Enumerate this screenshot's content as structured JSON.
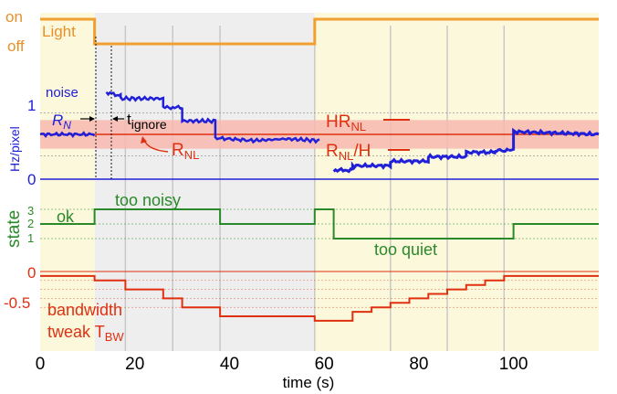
{
  "chart_data": {
    "type": "line",
    "xlabel": "time (s)",
    "xlim": [
      0,
      118
    ],
    "x_ticks": [
      {
        "v": 0,
        "t": "0"
      },
      {
        "v": 20,
        "t": "20"
      },
      {
        "v": 40,
        "t": "40"
      },
      {
        "v": 60,
        "t": "60"
      },
      {
        "v": 80,
        "t": "80"
      },
      {
        "v": 100,
        "t": "100"
      }
    ],
    "gridlines_x": [
      18,
      28,
      38,
      58,
      74,
      86,
      98
    ],
    "light_change_times": [
      11.5,
      58
    ],
    "panels": [
      {
        "name": "Light",
        "ytick_labels": [
          {
            "v": 1,
            "t": "on"
          },
          {
            "v": 0,
            "t": "off"
          }
        ],
        "x": [
          0,
          11.5,
          11.5,
          58,
          58,
          118
        ],
        "y": [
          1,
          1,
          0,
          0,
          1,
          1
        ]
      },
      {
        "name": "noise",
        "ylabel": "Hz/pixel",
        "ytick_labels": [
          {
            "v": 1,
            "t": "1"
          },
          {
            "v": 0,
            "t": "0"
          }
        ],
        "R_NL": 0.5,
        "band": [
          0.34,
          0.66
        ],
        "dotted_lines": [
          0.26,
          0.74
        ],
        "segments": [
          {
            "x": [
              0,
              11.5
            ],
            "y": [
              0.5,
              0.5
            ]
          },
          {
            "x": [
              14,
              17,
              17,
              26,
              26,
              30,
              30,
              37,
              37,
              45,
              52,
              59
            ],
            "y": [
              0.97,
              0.93,
              0.9,
              0.9,
              0.8,
              0.8,
              0.65,
              0.65,
              0.46,
              0.43,
              0.45,
              0.43
            ]
          },
          {
            "x": [
              62,
              66,
              66,
              74,
              74,
              82,
              82,
              90,
              90,
              96,
              96,
              99,
              99,
              100,
              100,
              118
            ],
            "y": [
              0.1,
              0.1,
              0.15,
              0.15,
              0.2,
              0.2,
              0.25,
              0.25,
              0.3,
              0.3,
              0.32,
              0.32,
              0.32,
              0.32,
              0.53,
              0.5
            ]
          }
        ],
        "annotations": {
          "R_N": {
            "main": "R",
            "sub": "N"
          },
          "t_ignore": {
            "main": "t",
            "sub": "ignore"
          },
          "R_NL": {
            "main": "R",
            "sub": "NL"
          },
          "HR_NL": {
            "main": "HR",
            "sub": "NL"
          },
          "R_NL_H": {
            "main": "R",
            "sub": "NL",
            "suffix": "/H"
          }
        }
      },
      {
        "name": "state",
        "ylabel": "state",
        "ytick_labels": [
          {
            "v": 3,
            "t": "3"
          },
          {
            "v": 2,
            "t": "2"
          },
          {
            "v": 1,
            "t": "1"
          }
        ],
        "x": [
          0,
          11.5,
          11.5,
          38,
          38,
          58,
          58,
          62,
          62,
          100,
          100,
          118
        ],
        "y": [
          2,
          2,
          3,
          3,
          2,
          2,
          3,
          3,
          1,
          1,
          2,
          2
        ],
        "labels": [
          "ok",
          "too noisy",
          "too quiet"
        ]
      },
      {
        "name": "bandwidth tweak",
        "label_lines": [
          "bandwidth",
          "tweak"
        ],
        "T_BW": {
          "main": "T",
          "sub": "BW"
        },
        "ytick_labels": [
          {
            "v": 0,
            "t": "0"
          },
          {
            "v": -0.5,
            "t": "-0.5"
          }
        ],
        "dotted_lines": [
          -0.1,
          -0.2,
          -0.3,
          -0.4
        ],
        "x": [
          0,
          11.5,
          11.5,
          18,
          18,
          26,
          26,
          30,
          30,
          38,
          38,
          58,
          58,
          66,
          66,
          70,
          70,
          74,
          74,
          78,
          78,
          82,
          82,
          86,
          86,
          90,
          90,
          94,
          94,
          98,
          98,
          118
        ],
        "y": [
          -0.05,
          -0.05,
          -0.1,
          -0.1,
          -0.2,
          -0.2,
          -0.3,
          -0.3,
          -0.4,
          -0.4,
          -0.5,
          -0.5,
          -0.55,
          -0.55,
          -0.45,
          -0.45,
          -0.4,
          -0.4,
          -0.35,
          -0.35,
          -0.3,
          -0.3,
          -0.25,
          -0.25,
          -0.2,
          -0.2,
          -0.15,
          -0.15,
          -0.1,
          -0.1,
          -0.05,
          -0.05
        ]
      }
    ],
    "colors": {
      "light": "#f0a030",
      "noise": "#2020d8",
      "state": "#2a8a2a",
      "tweak": "#e03010",
      "band": "#f8b8b0",
      "bg_light": "#fcf8dc",
      "bg_dark": "#eeeeee",
      "grid": "#c8c8c8"
    }
  }
}
